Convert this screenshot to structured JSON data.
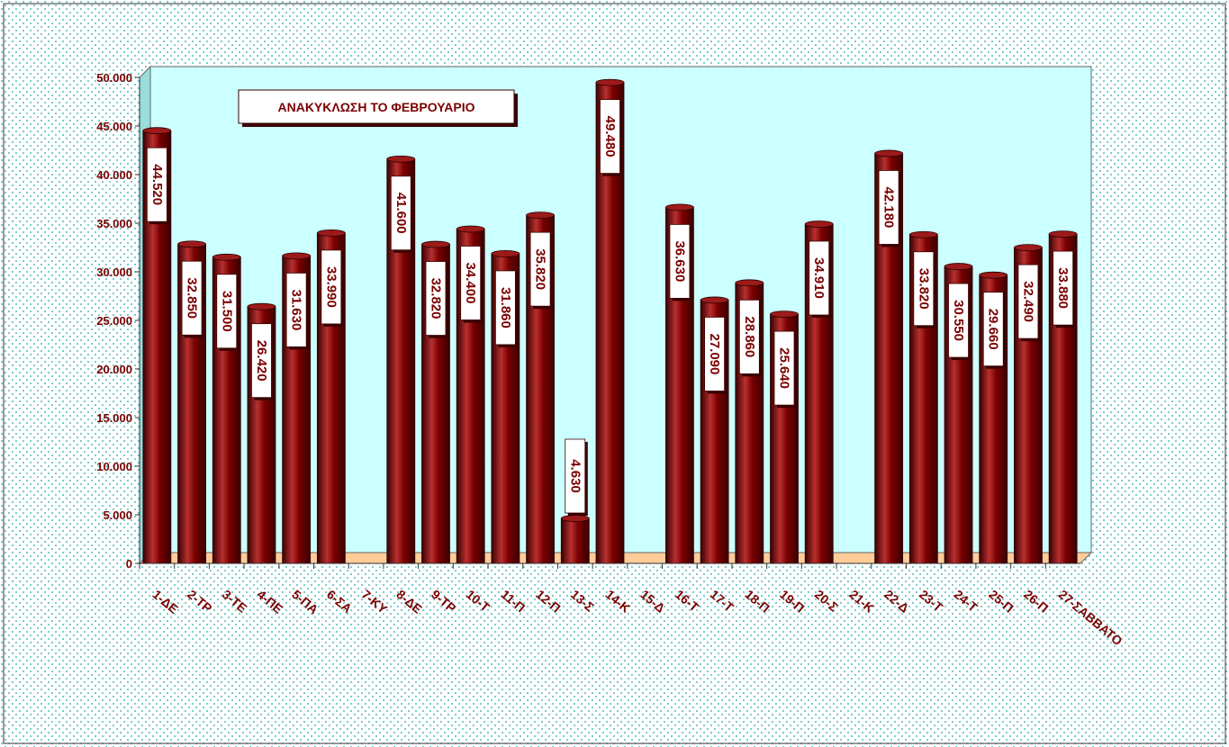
{
  "chart_data": {
    "type": "bar",
    "title": "ΑΝΑΚΥΚΛΩΣΗ ΤΟ ΦΕΒΡΟΥΑΡΙΟ",
    "xlabel": "",
    "ylabel": "",
    "ylim": [
      0,
      50000
    ],
    "yticks": [
      "0",
      "5.000",
      "10.000",
      "15.000",
      "20.000",
      "25.000",
      "30.000",
      "35.000",
      "40.000",
      "45.000",
      "50.000"
    ],
    "grid": false,
    "legend": "none",
    "categories": [
      "1-ΔΕ",
      "2-ΤΡ",
      "3-ΤΕ",
      "4-ΠΕ",
      "5-ΠΑ",
      "6-ΣΑ",
      "7-ΚΥ",
      "8-ΔΕ",
      "9-ΤΡ",
      "10-Τ",
      "11-Π",
      "12-Π",
      "13-Σ",
      "14-Κ",
      "15-Δ",
      "16-Τ",
      "17-Τ",
      "18-Π",
      "19-Π",
      "20-Σ",
      "21-Κ",
      "22-Δ",
      "23-Τ",
      "24-Τ",
      "25-Π",
      "26-Π",
      "27-ΣΑΒΒΑΤΟ"
    ],
    "values": [
      44520,
      32850,
      31500,
      26420,
      31630,
      33990,
      null,
      41600,
      32820,
      34400,
      31860,
      35820,
      4630,
      49480,
      null,
      36630,
      27090,
      28860,
      25640,
      34910,
      null,
      42180,
      33820,
      30550,
      29660,
      32490,
      33880
    ],
    "data_labels": [
      "44.520",
      "32.850",
      "31.500",
      "26.420",
      "31.630",
      "33.990",
      "",
      "41.600",
      "32.820",
      "34.400",
      "31.860",
      "35.820",
      "4.630",
      "49.480",
      "",
      "36.630",
      "27.090",
      "28.860",
      "25.640",
      "34.910",
      "",
      "42.180",
      "33.820",
      "30.550",
      "29.660",
      "32.490",
      "33.880"
    ],
    "colors": {
      "bar": "#7a0000",
      "bar_highlight": "#b83030",
      "bar_shadow": "#3a0000",
      "plot_bg": "#ccffff",
      "floor": "#ffcc99",
      "page_bg": "#ccffff",
      "text": "#7a0000"
    }
  }
}
